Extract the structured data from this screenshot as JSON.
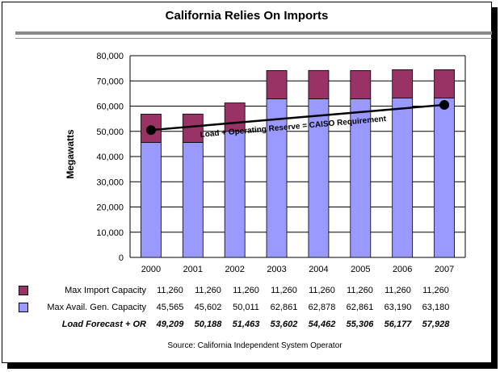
{
  "title": "California Relies On Imports",
  "source": "Source: California Independent System Operator",
  "chart_data": {
    "type": "bar",
    "stacked": true,
    "categories": [
      "2000",
      "2001",
      "2002",
      "2003",
      "2004",
      "2005",
      "2006",
      "2007"
    ],
    "ylabel": "Megawatts",
    "ylim": [
      0,
      80000
    ],
    "yticks": [
      "0",
      "10,000",
      "20,000",
      "30,000",
      "40,000",
      "50,000",
      "60,000",
      "70,000",
      "80,000"
    ],
    "grid": true,
    "series": [
      {
        "name": "Max Avail. Gen. Capacity",
        "type": "bar",
        "color": "#9999ff",
        "values": [
          45565,
          45602,
          50011,
          62861,
          62878,
          62861,
          63190,
          63180
        ],
        "labels": [
          "45,565",
          "45,602",
          "50,011",
          "62,861",
          "62,878",
          "62,861",
          "63,190",
          "63,180"
        ]
      },
      {
        "name": "Max Import Capacity",
        "type": "bar",
        "color": "#993366",
        "values": [
          11260,
          11260,
          11260,
          11260,
          11260,
          11260,
          11260,
          11260
        ],
        "labels": [
          "11,260",
          "11,260",
          "11,260",
          "11,260",
          "11,260",
          "11,260",
          "11,260",
          "11,260"
        ]
      },
      {
        "name": "Load Forecast + OR",
        "type": "line",
        "values": [
          49209,
          50188,
          51463,
          53602,
          54462,
          55306,
          56177,
          57928
        ],
        "labels": [
          "49,209",
          "50,188",
          "51,463",
          "53,602",
          "54,462",
          "55,306",
          "56,177",
          "57,928"
        ]
      }
    ],
    "annotation": "Load + Operating Reserve = CAISO Requirement",
    "trend_line": {
      "start": [
        "2000",
        50500
      ],
      "end": [
        "2007",
        60500
      ]
    }
  }
}
